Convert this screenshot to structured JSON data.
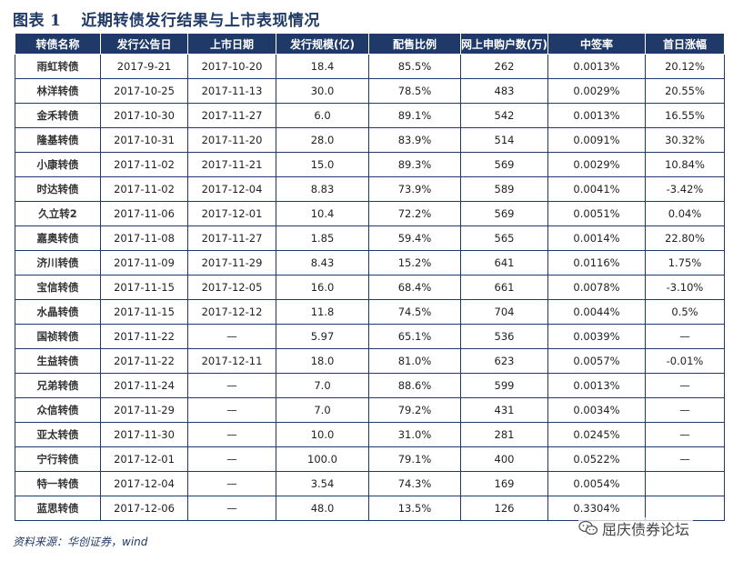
{
  "title": {
    "label": "图表",
    "number": "1",
    "text": "近期转债发行结果与上市表现情况"
  },
  "table": {
    "columns": [
      "转债名称",
      "发行公告日",
      "上市日期",
      "发行规模(亿)",
      "配售比例",
      "网上申购户数(万)",
      "中签率",
      "首日涨幅"
    ],
    "rows": [
      [
        "雨虹转债",
        "2017-9-21",
        "2017-10-20",
        "18.4",
        "85.5%",
        "262",
        "0.0013%",
        "20.12%"
      ],
      [
        "林洋转债",
        "2017-10-25",
        "2017-11-13",
        "30.0",
        "78.5%",
        "483",
        "0.0029%",
        "20.55%"
      ],
      [
        "金禾转债",
        "2017-10-30",
        "2017-11-27",
        "6.0",
        "89.1%",
        "542",
        "0.0013%",
        "16.55%"
      ],
      [
        "隆基转债",
        "2017-10-31",
        "2017-11-20",
        "28.0",
        "83.9%",
        "514",
        "0.0091%",
        "30.32%"
      ],
      [
        "小康转债",
        "2017-11-02",
        "2017-11-21",
        "15.0",
        "89.3%",
        "569",
        "0.0029%",
        "10.84%"
      ],
      [
        "时达转债",
        "2017-11-02",
        "2017-12-04",
        "8.83",
        "73.9%",
        "589",
        "0.0041%",
        "-3.42%"
      ],
      [
        "久立转2",
        "2017-11-06",
        "2017-12-01",
        "10.4",
        "72.2%",
        "569",
        "0.0051%",
        "0.04%"
      ],
      [
        "嘉奥转债",
        "2017-11-08",
        "2017-11-27",
        "1.85",
        "59.4%",
        "565",
        "0.0014%",
        "22.80%"
      ],
      [
        "济川转债",
        "2017-11-09",
        "2017-11-29",
        "8.43",
        "15.2%",
        "641",
        "0.0116%",
        "1.75%"
      ],
      [
        "宝信转债",
        "2017-11-15",
        "2017-12-05",
        "16.0",
        "68.4%",
        "661",
        "0.0078%",
        "-3.10%"
      ],
      [
        "水晶转债",
        "2017-11-15",
        "2017-12-12",
        "11.8",
        "74.5%",
        "704",
        "0.0044%",
        "0.5%"
      ],
      [
        "国祯转债",
        "2017-11-22",
        "—",
        "5.97",
        "65.1%",
        "536",
        "0.0039%",
        "—"
      ],
      [
        "生益转债",
        "2017-11-22",
        "2017-12-11",
        "18.0",
        "81.0%",
        "623",
        "0.0057%",
        "-0.01%"
      ],
      [
        "兄弟转债",
        "2017-11-24",
        "—",
        "7.0",
        "88.6%",
        "599",
        "0.0013%",
        "—"
      ],
      [
        "众信转债",
        "2017-11-29",
        "—",
        "7.0",
        "79.2%",
        "431",
        "0.0034%",
        "—"
      ],
      [
        "亚太转债",
        "2017-11-30",
        "—",
        "10.0",
        "31.0%",
        "281",
        "0.0245%",
        "—"
      ],
      [
        "宁行转债",
        "2017-12-01",
        "—",
        "100.0",
        "79.1%",
        "400",
        "0.0522%",
        "—"
      ],
      [
        "特一转债",
        "2017-12-04",
        "—",
        "3.54",
        "74.3%",
        "169",
        "0.0054%",
        ""
      ],
      [
        "蓝思转债",
        "2017-12-06",
        "—",
        "48.0",
        "13.5%",
        "126",
        "0.3304%",
        ""
      ]
    ]
  },
  "source": "资料来源：华创证券，wind",
  "watermark": {
    "text": "屈庆债券论坛",
    "icon": "wechat-icon"
  },
  "colors": {
    "header_bg": "#1f3a68",
    "border": "#1f3a68",
    "title": "#1f3a68"
  }
}
